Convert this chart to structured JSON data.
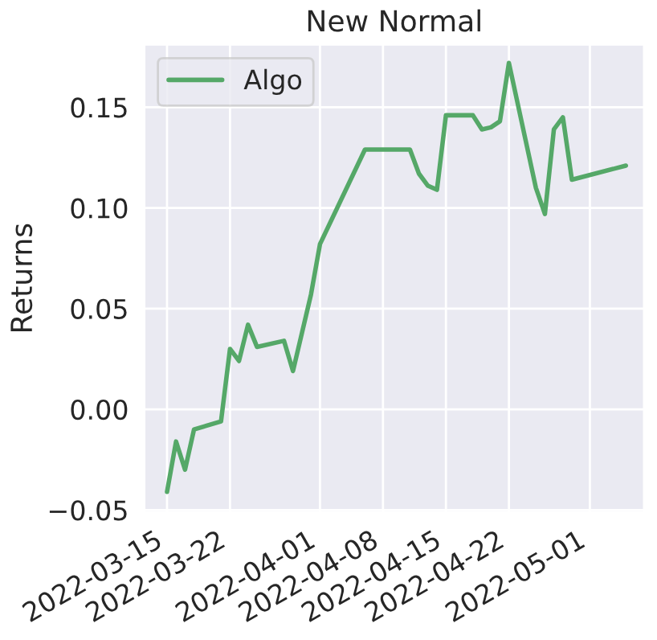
{
  "chart_data": {
    "type": "line",
    "title": "New Normal",
    "ylabel": "Returns",
    "x": [
      "2022-03-15",
      "2022-03-16",
      "2022-03-17",
      "2022-03-18",
      "2022-03-21",
      "2022-03-22",
      "2022-03-23",
      "2022-03-24",
      "2022-03-25",
      "2022-03-28",
      "2022-03-29",
      "2022-03-30",
      "2022-03-31",
      "2022-04-01",
      "2022-04-06",
      "2022-04-11",
      "2022-04-12",
      "2022-04-13",
      "2022-04-14",
      "2022-04-15",
      "2022-04-18",
      "2022-04-19",
      "2022-04-20",
      "2022-04-21",
      "2022-04-22",
      "2022-04-25",
      "2022-04-26",
      "2022-04-27",
      "2022-04-28",
      "2022-04-29",
      "2022-05-05"
    ],
    "series": [
      {
        "name": "Algo",
        "color": "#55a868",
        "values": [
          -0.041,
          -0.016,
          -0.03,
          -0.01,
          -0.006,
          0.03,
          0.024,
          0.042,
          0.031,
          0.034,
          0.019,
          0.038,
          0.057,
          0.082,
          0.129,
          0.129,
          0.117,
          0.111,
          0.109,
          0.146,
          0.146,
          0.139,
          0.14,
          0.143,
          0.172,
          0.11,
          0.097,
          0.139,
          0.145,
          0.114,
          0.121
        ]
      }
    ],
    "xlim": [
      "2022-03-12T12:00",
      "2022-05-07T00:00"
    ],
    "xticks": [
      "2022-03-15",
      "2022-03-22",
      "2022-04-01",
      "2022-04-08",
      "2022-04-15",
      "2022-04-22",
      "2022-05-01"
    ],
    "ylim": [
      -0.051,
      0.181
    ],
    "yticks": [
      {
        "value": -0.05,
        "label": "−0.05"
      },
      {
        "value": 0.0,
        "label": "0.00"
      },
      {
        "value": 0.05,
        "label": "0.05"
      },
      {
        "value": 0.1,
        "label": "0.10"
      },
      {
        "value": 0.15,
        "label": "0.15"
      }
    ],
    "grid": true,
    "legend": "top left",
    "line_style": "solid",
    "marker": "none"
  }
}
